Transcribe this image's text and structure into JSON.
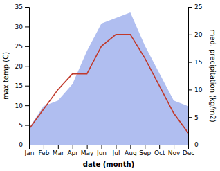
{
  "chart_data": {
    "type": "line",
    "categories": [
      "Jan",
      "Feb",
      "Mar",
      "Apr",
      "May",
      "Jun",
      "Jul",
      "Aug",
      "Sep",
      "Oct",
      "Nov",
      "Dec"
    ],
    "xlabel": "date (month)",
    "ylabel": "max temp (C)",
    "y2label": "med. precipitation (kg/m2)",
    "series": [
      {
        "type": "area",
        "axis": "y2",
        "color": "#b0bef0",
        "values": [
          3,
          7,
          8,
          11,
          17,
          22,
          23,
          24,
          18,
          13,
          8,
          7
        ]
      },
      {
        "type": "line",
        "color": "#c0392b",
        "values": [
          4,
          9,
          14,
          18,
          18,
          25,
          28,
          28,
          22,
          15,
          8,
          3
        ]
      }
    ],
    "ylim": [
      0,
      35
    ],
    "yticks": [
      0,
      5,
      10,
      15,
      20,
      25,
      30,
      35
    ],
    "y2lim": [
      0,
      25
    ],
    "y2ticks": [
      0,
      5,
      10,
      15,
      20,
      25
    ],
    "grid": false
  }
}
